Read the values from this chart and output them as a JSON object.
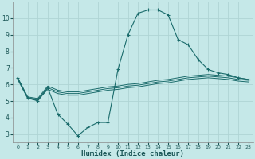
{
  "xlabel": "Humidex (Indice chaleur)",
  "background_color": "#c5e8e8",
  "grid_color": "#afd4d4",
  "line_color": "#1a6b6b",
  "xlim": [
    -0.5,
    23.5
  ],
  "ylim": [
    2.5,
    11.0
  ],
  "xticks": [
    0,
    1,
    2,
    3,
    4,
    5,
    6,
    7,
    8,
    9,
    10,
    11,
    12,
    13,
    14,
    15,
    16,
    17,
    18,
    19,
    20,
    21,
    22,
    23
  ],
  "yticks": [
    3,
    4,
    5,
    6,
    7,
    8,
    9,
    10
  ],
  "curve1_x": [
    0,
    1,
    2,
    3,
    4,
    5,
    6,
    7,
    8,
    9,
    10,
    11,
    12,
    13,
    14,
    15,
    16,
    17,
    18,
    19,
    20,
    21,
    22,
    23
  ],
  "curve1_y": [
    6.4,
    5.2,
    5.0,
    5.8,
    4.2,
    3.6,
    2.9,
    3.4,
    3.7,
    3.7,
    6.9,
    9.0,
    10.3,
    10.5,
    10.5,
    10.2,
    8.7,
    8.4,
    7.5,
    6.9,
    6.7,
    6.6,
    6.4,
    6.3
  ],
  "curve2_x": [
    0,
    1,
    2,
    3,
    4,
    5,
    6,
    7,
    8,
    9,
    10,
    11,
    12,
    13,
    14,
    15,
    16,
    17,
    18,
    19,
    20,
    21,
    22,
    23
  ],
  "curve2_y": [
    6.4,
    5.25,
    5.15,
    5.9,
    5.65,
    5.55,
    5.55,
    5.65,
    5.75,
    5.85,
    5.9,
    6.0,
    6.05,
    6.15,
    6.25,
    6.3,
    6.4,
    6.5,
    6.55,
    6.6,
    6.55,
    6.5,
    6.4,
    6.3
  ],
  "curve3_x": [
    0,
    1,
    2,
    3,
    4,
    5,
    6,
    7,
    8,
    9,
    10,
    11,
    12,
    13,
    14,
    15,
    16,
    17,
    18,
    19,
    20,
    21,
    22,
    23
  ],
  "curve3_y": [
    6.35,
    5.2,
    5.1,
    5.8,
    5.55,
    5.45,
    5.45,
    5.55,
    5.65,
    5.75,
    5.8,
    5.9,
    5.95,
    6.05,
    6.15,
    6.2,
    6.3,
    6.4,
    6.45,
    6.5,
    6.45,
    6.4,
    6.3,
    6.25
  ],
  "curve4_x": [
    0,
    1,
    2,
    3,
    4,
    5,
    6,
    7,
    8,
    9,
    10,
    11,
    12,
    13,
    14,
    15,
    16,
    17,
    18,
    19,
    20,
    21,
    22,
    23
  ],
  "curve4_y": [
    6.3,
    5.15,
    5.05,
    5.7,
    5.45,
    5.35,
    5.35,
    5.45,
    5.55,
    5.65,
    5.7,
    5.8,
    5.85,
    5.95,
    6.05,
    6.1,
    6.2,
    6.3,
    6.35,
    6.4,
    6.35,
    6.3,
    6.2,
    6.15
  ]
}
